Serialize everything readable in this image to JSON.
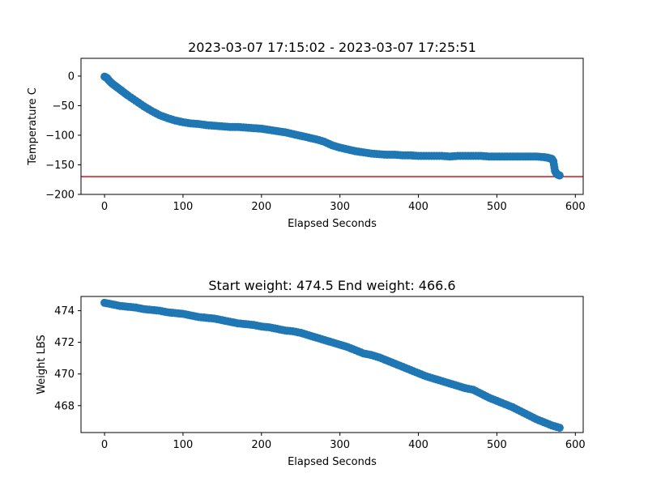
{
  "colors": {
    "marker": "#1f77b4",
    "hline": "#d62728",
    "axis": "#000000"
  },
  "chart_data": [
    {
      "type": "scatter",
      "title": "2023-03-07 17:15:02 - 2023-03-07 17:25:51",
      "xlabel": "Elapsed Seconds",
      "ylabel": "Temperature C",
      "xlim": [
        -30,
        610
      ],
      "ylim": [
        -200,
        30
      ],
      "xticks": [
        0,
        100,
        200,
        300,
        400,
        500,
        600
      ],
      "yticks": [
        0,
        -50,
        -100,
        -150,
        -200
      ],
      "xtick_labels": [
        "0",
        "100",
        "200",
        "300",
        "400",
        "500",
        "600"
      ],
      "ytick_labels": [
        "0",
        "−50",
        "−100",
        "−150",
        "−200"
      ],
      "grid": false,
      "hline": {
        "y": -170,
        "color": "#d62728"
      },
      "series": [
        {
          "x": [
            0,
            3,
            6,
            10,
            15,
            20,
            25,
            30,
            40,
            50,
            60,
            70,
            80,
            90,
            100,
            110,
            120,
            130,
            140,
            150,
            160,
            170,
            180,
            190,
            200,
            210,
            220,
            230,
            240,
            250,
            260,
            270,
            280,
            290,
            300,
            310,
            320,
            330,
            340,
            350,
            360,
            370,
            380,
            390,
            400,
            410,
            420,
            430,
            440,
            450,
            460,
            470,
            480,
            490,
            500,
            510,
            520,
            530,
            540,
            550,
            560,
            565,
            570,
            572,
            574,
            576,
            578,
            580
          ],
          "y": [
            -1,
            -3,
            -8,
            -13,
            -18,
            -23,
            -28,
            -33,
            -42,
            -51,
            -59,
            -66,
            -71,
            -75,
            -78,
            -80,
            -81,
            -83,
            -84,
            -85,
            -86,
            -86,
            -87,
            -88,
            -89,
            -91,
            -93,
            -95,
            -98,
            -101,
            -104,
            -107,
            -111,
            -117,
            -121,
            -124,
            -127,
            -129,
            -131,
            -132,
            -133,
            -133,
            -134,
            -134,
            -135,
            -135,
            -135,
            -135,
            -136,
            -135,
            -135,
            -135,
            -135,
            -136,
            -136,
            -136,
            -136,
            -136,
            -136,
            -136,
            -137,
            -138,
            -140,
            -144,
            -160,
            -165,
            -167,
            -168
          ]
        }
      ]
    },
    {
      "type": "scatter",
      "title": "Start weight: 474.5 End weight: 466.6",
      "xlabel": "Elapsed Seconds",
      "ylabel": "Weight LBS",
      "xlim": [
        -30,
        610
      ],
      "ylim": [
        466.3,
        474.9
      ],
      "xticks": [
        0,
        100,
        200,
        300,
        400,
        500,
        600
      ],
      "yticks": [
        468,
        470,
        472,
        474
      ],
      "xtick_labels": [
        "0",
        "100",
        "200",
        "300",
        "400",
        "500",
        "600"
      ],
      "ytick_labels": [
        "468",
        "470",
        "472",
        "474"
      ],
      "grid": false,
      "series": [
        {
          "x": [
            0,
            10,
            20,
            30,
            40,
            50,
            60,
            70,
            80,
            90,
            100,
            110,
            120,
            130,
            140,
            150,
            160,
            170,
            180,
            190,
            200,
            210,
            220,
            230,
            240,
            250,
            260,
            270,
            280,
            290,
            300,
            310,
            320,
            330,
            340,
            350,
            360,
            370,
            380,
            390,
            400,
            410,
            420,
            430,
            440,
            450,
            460,
            470,
            480,
            490,
            500,
            510,
            520,
            530,
            540,
            550,
            560,
            570,
            580
          ],
          "y": [
            474.5,
            474.4,
            474.3,
            474.25,
            474.2,
            474.1,
            474.05,
            474.0,
            473.9,
            473.85,
            473.8,
            473.7,
            473.6,
            473.55,
            473.5,
            473.4,
            473.3,
            473.2,
            473.15,
            473.1,
            473.0,
            472.95,
            472.85,
            472.75,
            472.7,
            472.6,
            472.45,
            472.3,
            472.15,
            472.0,
            471.85,
            471.7,
            471.5,
            471.3,
            471.2,
            471.05,
            470.85,
            470.65,
            470.45,
            470.25,
            470.05,
            469.85,
            469.7,
            469.55,
            469.4,
            469.25,
            469.1,
            469.0,
            468.75,
            468.5,
            468.3,
            468.1,
            467.9,
            467.65,
            467.4,
            467.15,
            466.95,
            466.75,
            466.6
          ]
        }
      ]
    }
  ]
}
